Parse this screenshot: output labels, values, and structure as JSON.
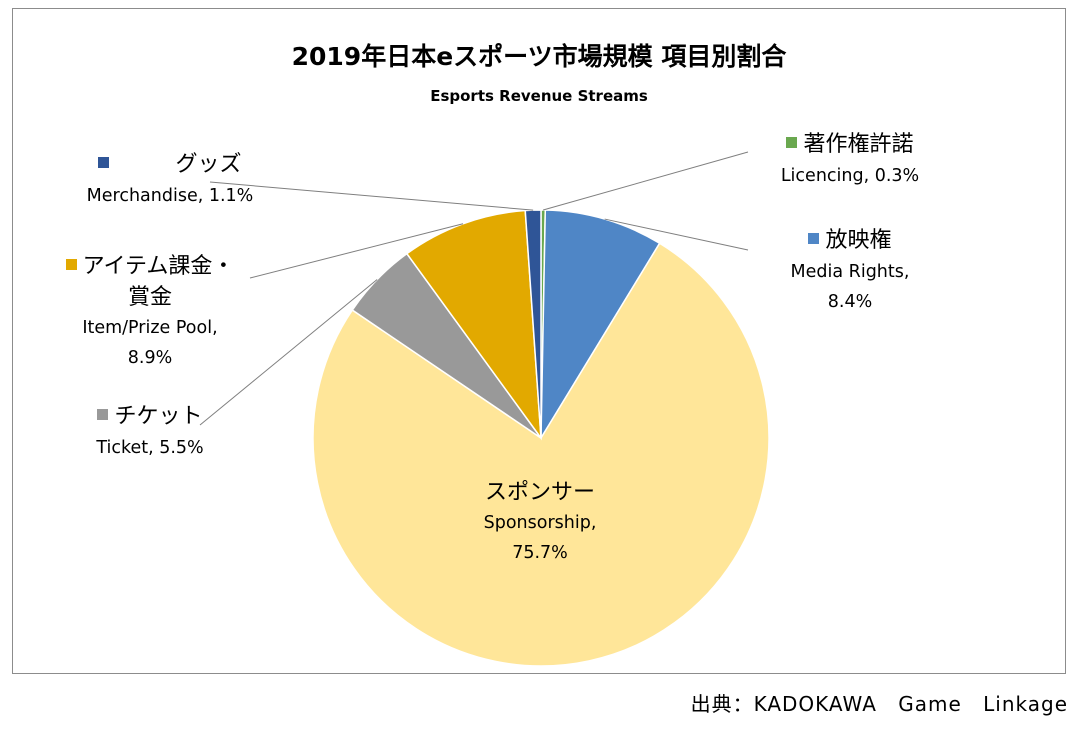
{
  "chart_data": {
    "type": "pie",
    "title": "2019年日本eスポーツ市場規模 項目別割合",
    "subtitle": "Esports Revenue Streams",
    "slices": [
      {
        "label_jp": "著作権許諾",
        "label_en": "Licencing, 0.3%",
        "value": 0.3,
        "color": "#6aa84f"
      },
      {
        "label_jp": "放映権",
        "label_en": "Media Rights,",
        "pct_line": "8.4%",
        "value": 8.4,
        "color": "#4f86c6"
      },
      {
        "label_jp": "スポンサー",
        "label_en": "Sponsorship,",
        "pct_line": "75.7%",
        "value": 75.7,
        "color": "#ffe699"
      },
      {
        "label_jp": "チケット",
        "label_en": "Ticket, 5.5%",
        "value": 5.5,
        "color": "#999999"
      },
      {
        "label_jp": "アイテム課金・",
        "label_jp2": "賞金",
        "label_en": "Item/Prize Pool,",
        "pct_line": "8.9%",
        "value": 8.9,
        "color": "#e2a900"
      },
      {
        "label_jp": "グッズ",
        "label_en": "Merchandise, 1.1%",
        "value": 1.1,
        "color": "#2f5597"
      }
    ],
    "legend": "data-labels"
  },
  "source": "出典：KADOKAWA Game Linkage"
}
